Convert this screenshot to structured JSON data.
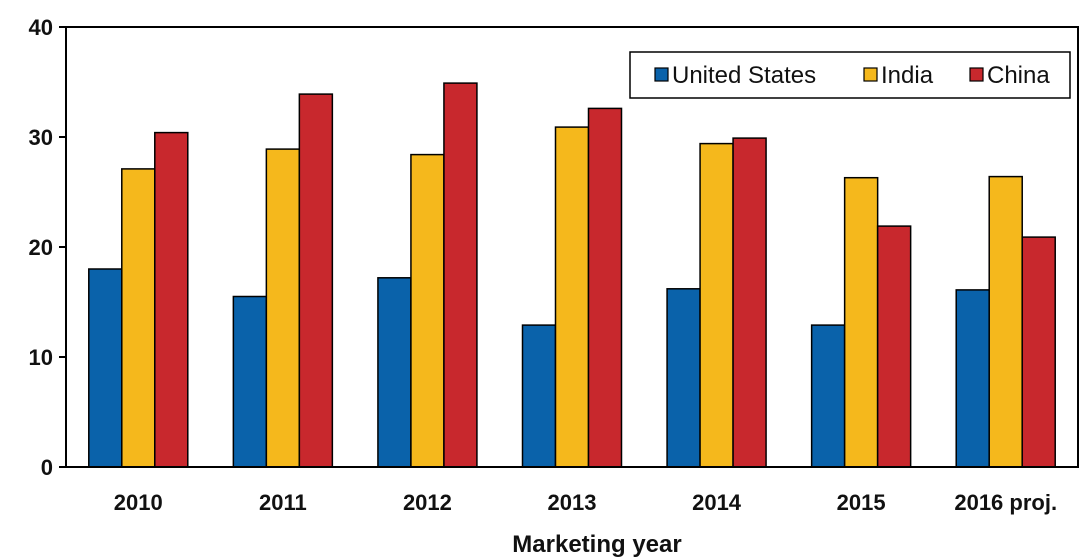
{
  "chart_data": {
    "type": "bar",
    "title": "",
    "xlabel": "Marketing year",
    "ylabel": "",
    "ylim": [
      0,
      40
    ],
    "yticks": [
      0,
      10,
      20,
      30,
      40
    ],
    "grid": false,
    "legend_position": "top-right",
    "categories": [
      "2010",
      "2011",
      "2012",
      "2013",
      "2014",
      "2015",
      "2016 proj."
    ],
    "series": [
      {
        "name": "United States",
        "color": "#0a62aa",
        "values": [
          18,
          15.5,
          17.2,
          12.9,
          16.2,
          12.9,
          16.1
        ]
      },
      {
        "name": "India",
        "color": "#f5b81c",
        "values": [
          27.1,
          28.9,
          28.4,
          30.9,
          29.4,
          26.3,
          26.4
        ]
      },
      {
        "name": "China",
        "color": "#c8282d",
        "values": [
          30.4,
          33.9,
          34.9,
          32.6,
          29.9,
          21.9,
          20.9
        ]
      }
    ]
  }
}
